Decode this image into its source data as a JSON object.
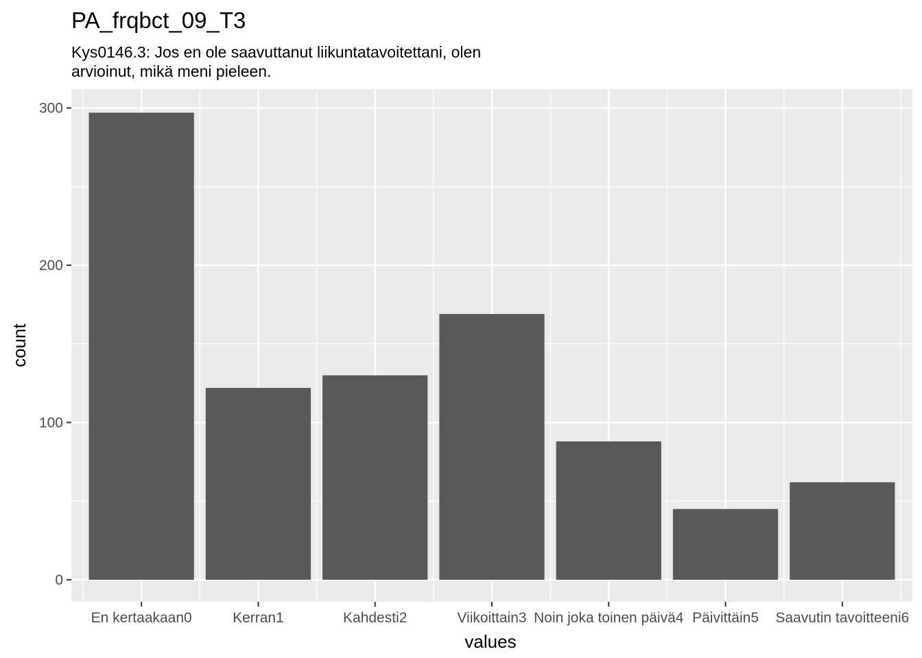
{
  "chart_data": {
    "type": "bar",
    "title": "PA_frqbct_09_T3",
    "subtitle_lines": [
      "Kys0146.3: Jos en ole saavuttanut liikuntatavoitettani, olen",
      "arvioinut, mikä meni pieleen."
    ],
    "xlabel": "values",
    "ylabel": "count",
    "categories": [
      "En kertaakaan0",
      "Kerran1",
      "Kahdesti2",
      "Viikoittain3",
      "Noin joka toinen päivä4",
      "Päivittäin5",
      "Saavutin tavoitteeni6"
    ],
    "values": [
      297,
      122,
      130,
      169,
      88,
      45,
      62
    ],
    "ylim": [
      -14,
      312
    ],
    "yticks": [
      0,
      100,
      200,
      300
    ],
    "grid": true,
    "colors": {
      "bar": "#595959",
      "panel_background": "#ebebeb",
      "grid": "#ffffff",
      "tick_label": "#4d4d4d"
    }
  }
}
